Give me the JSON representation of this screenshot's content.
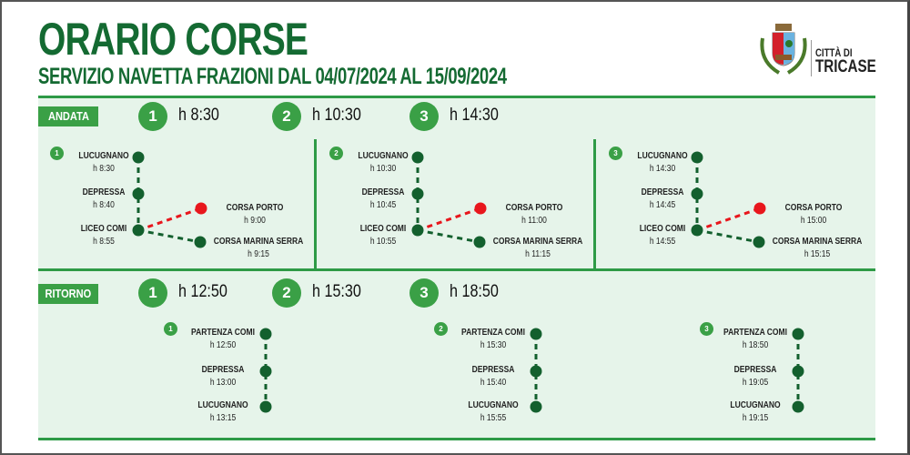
{
  "header": {
    "title": "ORARIO CORSE",
    "subtitle": "SERVIZIO NAVETTA FRAZIONI DAL 04/07/2024 AL 15/09/2024"
  },
  "logo": {
    "line1": "CITTÀ DI",
    "line2": "TRICASE",
    "icon": "coat-of-arms"
  },
  "colors": {
    "green_dark": "#146a32",
    "green": "#3aa046",
    "dot": "#13602e",
    "red": "#e8161c",
    "panel_bg": "#e6f4ea"
  },
  "andata": {
    "label": "ANDATA",
    "runs": [
      {
        "num": "1",
        "time": "h 8:30"
      },
      {
        "num": "2",
        "time": "h 10:30"
      },
      {
        "num": "3",
        "time": "h 14:30"
      }
    ],
    "diagrams": [
      {
        "num": "1",
        "stops": [
          {
            "name": "LUCUGNANO",
            "time": "h 8:30"
          },
          {
            "name": "DEPRESSA",
            "time": "h 8:40"
          },
          {
            "name": "LICEO COMI",
            "time": "h 8:55"
          }
        ],
        "porto": {
          "name": "CORSA PORTO",
          "time": "h 9:00"
        },
        "marina": {
          "name": "CORSA MARINA SERRA",
          "time": "h 9:15"
        }
      },
      {
        "num": "2",
        "stops": [
          {
            "name": "LUCUGNANO",
            "time": "h 10:30"
          },
          {
            "name": "DEPRESSA",
            "time": "h 10:45"
          },
          {
            "name": "LICEO COMI",
            "time": "h 10:55"
          }
        ],
        "porto": {
          "name": "CORSA PORTO",
          "time": "h 11:00"
        },
        "marina": {
          "name": "CORSA MARINA SERRA",
          "time": "h 11:15"
        }
      },
      {
        "num": "3",
        "stops": [
          {
            "name": "LUCUGNANO",
            "time": "h 14:30"
          },
          {
            "name": "DEPRESSA",
            "time": "h 14:45"
          },
          {
            "name": "LICEO COMI",
            "time": "h 14:55"
          }
        ],
        "porto": {
          "name": "CORSA PORTO",
          "time": "h 15:00"
        },
        "marina": {
          "name": "CORSA MARINA SERRA",
          "time": "h 15:15"
        }
      }
    ]
  },
  "ritorno": {
    "label": "RITORNO",
    "runs": [
      {
        "num": "1",
        "time": "h 12:50"
      },
      {
        "num": "2",
        "time": "h 15:30"
      },
      {
        "num": "3",
        "time": "h 18:50"
      }
    ],
    "diagrams": [
      {
        "num": "1",
        "stops": [
          {
            "name": "PARTENZA COMI",
            "time": "h 12:50"
          },
          {
            "name": "DEPRESSA",
            "time": "h 13:00"
          },
          {
            "name": "LUCUGNANO",
            "time": "h 13:15"
          }
        ]
      },
      {
        "num": "2",
        "stops": [
          {
            "name": "PARTENZA COMI",
            "time": "h 15:30"
          },
          {
            "name": "DEPRESSA",
            "time": "h 15:40"
          },
          {
            "name": "LUCUGNANO",
            "time": "h 15:55"
          }
        ]
      },
      {
        "num": "3",
        "stops": [
          {
            "name": "PARTENZA COMI",
            "time": "h 18:50"
          },
          {
            "name": "DEPRESSA",
            "time": "h 19:05"
          },
          {
            "name": "LUCUGNANO",
            "time": "h 19:15"
          }
        ]
      }
    ]
  }
}
